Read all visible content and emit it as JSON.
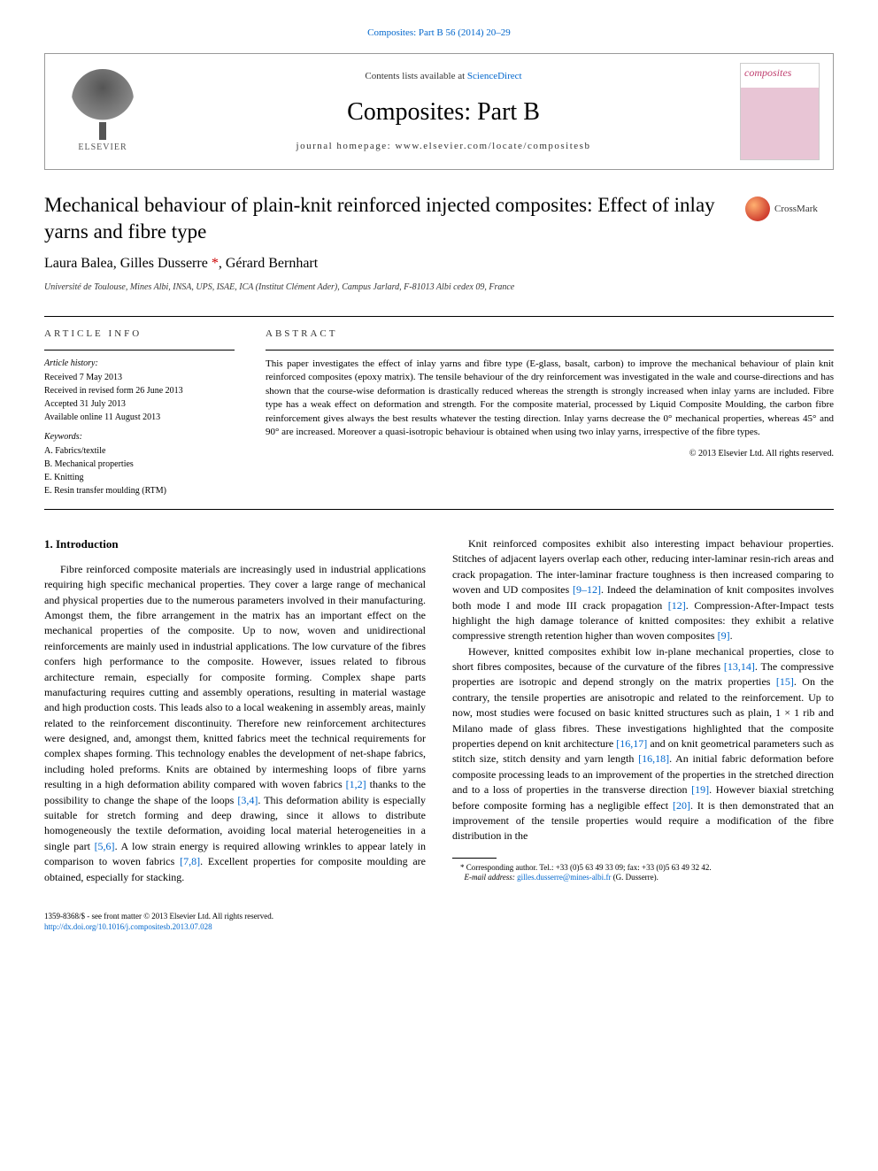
{
  "journal_link": "Composites: Part B 56 (2014) 20–29",
  "header": {
    "contents_prefix": "Contents lists available at ",
    "contents_link": "ScienceDirect",
    "journal_name": "Composites: Part B",
    "homepage_prefix": "journal homepage: ",
    "homepage_url": "www.elsevier.com/locate/compositesb",
    "publisher": "ELSEVIER",
    "cover_title": "composites"
  },
  "article": {
    "title": "Mechanical behaviour of plain-knit reinforced injected composites: Effect of inlay yarns and fibre type",
    "crossmark_label": "CrossMark",
    "authors_html": "Laura Balea, Gilles Dusserre <span class='corr'>*</span>, Gérard Bernhart",
    "affiliation": "Université de Toulouse, Mines Albi, INSA, UPS, ISAE, ICA (Institut Clément Ader), Campus Jarlard, F-81013 Albi cedex 09, France"
  },
  "info": {
    "label": "ARTICLE INFO",
    "history_title": "Article history:",
    "history": [
      "Received 7 May 2013",
      "Received in revised form 26 June 2013",
      "Accepted 31 July 2013",
      "Available online 11 August 2013"
    ],
    "keywords_title": "Keywords:",
    "keywords": [
      "A. Fabrics/textile",
      "B. Mechanical properties",
      "E. Knitting",
      "E. Resin transfer moulding (RTM)"
    ]
  },
  "abstract": {
    "label": "ABSTRACT",
    "text": "This paper investigates the effect of inlay yarns and fibre type (E-glass, basalt, carbon) to improve the mechanical behaviour of plain knit reinforced composites (epoxy matrix). The tensile behaviour of the dry reinforcement was investigated in the wale and course-directions and has shown that the course-wise deformation is drastically reduced whereas the strength is strongly increased when inlay yarns are included. Fibre type has a weak effect on deformation and strength. For the composite material, processed by Liquid Composite Moulding, the carbon fibre reinforcement gives always the best results whatever the testing direction. Inlay yarns decrease the 0° mechanical properties, whereas 45° and 90° are increased. Moreover a quasi-isotropic behaviour is obtained when using two inlay yarns, irrespective of the fibre types.",
    "copyright": "© 2013 Elsevier Ltd. All rights reserved."
  },
  "body": {
    "heading": "1. Introduction",
    "p1": "Fibre reinforced composite materials are increasingly used in industrial applications requiring high specific mechanical properties. They cover a large range of mechanical and physical properties due to the numerous parameters involved in their manufacturing. Amongst them, the fibre arrangement in the matrix has an important effect on the mechanical properties of the composite. Up to now, woven and unidirectional reinforcements are mainly used in industrial applications. The low curvature of the fibres confers high performance to the composite. However, issues related to fibrous architecture remain, especially for composite forming. Complex shape parts manufacturing requires cutting and assembly operations, resulting in material wastage and high production costs. This leads also to a local weakening in assembly areas, mainly related to the reinforcement discontinuity. Therefore new reinforcement architectures were designed, and, amongst them, knitted fabrics meet the technical requirements for complex shapes forming. This technology enables the development of net-shape fabrics, including holed preforms. Knits are obtained by intermeshing loops of fibre yarns resulting in a high deformation ability compared with woven fabrics ",
    "p1_ref1": "[1,2]",
    "p1_cont1": " thanks to the possibility to change the shape of the loops ",
    "p1_ref2": "[3,4]",
    "p1_cont2": ". This deformation ability is especially suitable for stretch forming and deep drawing, since it allows to distribute homogeneously the textile deformation, avoiding local material heterogeneities in a single part ",
    "p1_ref3": "[5,6]",
    "p1_cont3": ". A low strain energy is required allowing wrinkles to appear lately in comparison to woven fabrics ",
    "p1_ref4": "[7,8]",
    "p1_cont4": ". Excellent properties for composite moulding are obtained, especially for stacking.",
    "p2": "Knit reinforced composites exhibit also interesting impact behaviour properties. Stitches of adjacent layers overlap each other, reducing inter-laminar resin-rich areas and crack propagation. The inter-laminar fracture toughness is then increased comparing to woven and UD composites ",
    "p2_ref1": "[9–12]",
    "p2_cont1": ". Indeed the delamination of knit composites involves both mode I and mode III crack propagation ",
    "p2_ref2": "[12]",
    "p2_cont2": ". Compression-After-Impact tests highlight the high damage tolerance of knitted composites: they exhibit a relative compressive strength retention higher than woven composites ",
    "p2_ref3": "[9]",
    "p2_cont3": ".",
    "p3": "However, knitted composites exhibit low in-plane mechanical properties, close to short fibres composites, because of the curvature of the fibres ",
    "p3_ref1": "[13,14]",
    "p3_cont1": ". The compressive properties are isotropic and depend strongly on the matrix properties ",
    "p3_ref2": "[15]",
    "p3_cont2": ". On the contrary, the tensile properties are anisotropic and related to the reinforcement. Up to now, most studies were focused on basic knitted structures such as plain, 1 × 1 rib and Milano made of glass fibres. These investigations highlighted that the composite properties depend on knit architecture ",
    "p3_ref3": "[16,17]",
    "p3_cont3": " and on knit geometrical parameters such as stitch size, stitch density and yarn length ",
    "p3_ref4": "[16,18]",
    "p3_cont4": ". An initial fabric deformation before composite processing leads to an improvement of the properties in the stretched direction and to a loss of properties in the transverse direction ",
    "p3_ref5": "[19]",
    "p3_cont5": ". However biaxial stretching before composite forming has a negligible effect ",
    "p3_ref6": "[20]",
    "p3_cont6": ". It is then demonstrated that an improvement of the tensile properties would require a modification of the fibre distribution in the"
  },
  "footnote": {
    "corr_label": "* Corresponding author. Tel.: +33 (0)5 63 49 33 09; fax: +33 (0)5 63 49 32 42.",
    "email_label": "E-mail address: ",
    "email": "gilles.dusserre@mines-albi.fr",
    "email_suffix": " (G. Dusserre)."
  },
  "footer": {
    "issn_line": "1359-8368/$ - see front matter © 2013 Elsevier Ltd. All rights reserved.",
    "doi": "http://dx.doi.org/10.1016/j.compositesb.2013.07.028"
  },
  "colors": {
    "link": "#0066cc",
    "accent": "#c04070"
  }
}
